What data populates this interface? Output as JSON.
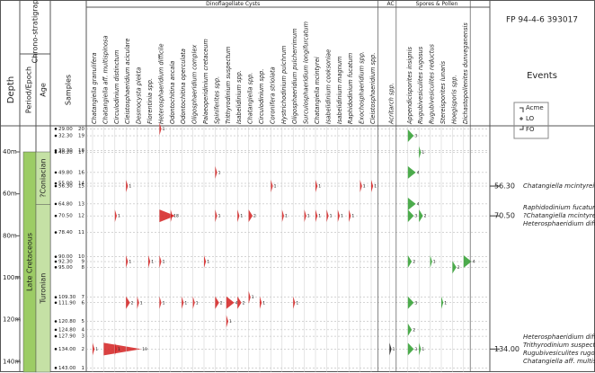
{
  "header": {
    "depth": "Depth",
    "chronostratigraphy": "Chrono-stratigraphy",
    "period_epoch": "Period/Epoch",
    "age": "Age",
    "samples": "Samples",
    "well": "FP 94-4-6 393017",
    "events": "Events"
  },
  "legend": [
    "Acme",
    "LO",
    "FO"
  ],
  "depth_axis": {
    "lim": [
      28,
      145
    ],
    "ticks": [
      {
        "value": 40,
        "label": "40m"
      },
      {
        "value": 60,
        "label": "60m"
      },
      {
        "value": 80,
        "label": "80m"
      },
      {
        "value": 100,
        "label": "100m"
      },
      {
        "value": 120,
        "label": "120m"
      },
      {
        "value": 140,
        "label": "140m"
      }
    ]
  },
  "chronostratigraphy": {
    "period": {
      "name": "Late Cretaceous",
      "top": 40,
      "base": 145
    },
    "ages": [
      {
        "name": "?Coniacian",
        "top": 40,
        "base": 65
      },
      {
        "name": "Turonian",
        "top": 65,
        "base": 145
      }
    ]
  },
  "samples": [
    {
      "depth": {
        "value": 29,
        "label": "29.00"
      },
      "number": 20
    },
    {
      "depth": {
        "value": 32.3,
        "label": "32.30"
      },
      "number": 19
    },
    {
      "depth": {
        "value": 39.3,
        "label": "39.30"
      },
      "number": 18
    },
    {
      "depth": {
        "value": 40.2,
        "label": "40.20"
      },
      "number": 17
    },
    {
      "depth": {
        "value": 49.8,
        "label": "49.80"
      },
      "number": 16
    },
    {
      "depth": {
        "value": 55,
        "label": "55.00"
      },
      "number": 14
    },
    {
      "depth": {
        "value": 56.3,
        "label": "56.30"
      },
      "number": 15
    },
    {
      "depth": {
        "value": 64.8,
        "label": "64.80"
      },
      "number": 13
    },
    {
      "depth": {
        "value": 70.5,
        "label": "70.50"
      },
      "number": 12
    },
    {
      "depth": {
        "value": 78.4,
        "label": "78.40"
      },
      "number": 11
    },
    {
      "depth": {
        "value": 90,
        "label": "90.00"
      },
      "number": 10
    },
    {
      "depth": {
        "value": 92.3,
        "label": "92.30"
      },
      "number": 9
    },
    {
      "depth": {
        "value": 95,
        "label": "95.00"
      },
      "number": 8
    },
    {
      "depth": {
        "value": 109.3,
        "label": "109.30"
      },
      "number": 7
    },
    {
      "depth": {
        "value": 111.9,
        "label": "111.90"
      },
      "number": 6
    },
    {
      "depth": {
        "value": 120.8,
        "label": "120.80"
      },
      "number": 5
    },
    {
      "depth": {
        "value": 124.8,
        "label": "124.80"
      },
      "number": 4
    },
    {
      "depth": {
        "value": 127.9,
        "label": "127.90"
      },
      "number": 3
    },
    {
      "depth": {
        "value": 134,
        "label": "134.00"
      },
      "number": 2
    },
    {
      "depth": {
        "value": 143,
        "label": "143.00"
      },
      "number": 1
    }
  ],
  "groups": [
    {
      "name": "Dinoflagellate Cysts",
      "color": "#d42020",
      "taxa": [
        {
          "name": "Chatangiella granulifera",
          "occurrences": [
            [
              134,
              1
            ]
          ]
        },
        {
          "name": "Chatangiella aff. multispinosa",
          "occurrences": [
            [
              134,
              19
            ]
          ]
        },
        {
          "name": "Circulodinium distinctum",
          "occurrences": [
            [
              70.5,
              1
            ],
            [
              134,
              1
            ]
          ]
        },
        {
          "name": "Cleistosphaeridium aciculare",
          "occurrences": [
            [
              56.3,
              1
            ],
            [
              92.3,
              1
            ],
            [
              111.9,
              2
            ]
          ]
        },
        {
          "name": "Desmocysta plekta",
          "occurrences": [
            [
              111.9,
              1
            ]
          ]
        },
        {
          "name": "Florentinia spp.",
          "occurrences": [
            [
              92.3,
              1
            ]
          ]
        },
        {
          "name": "Heterosphaeridium difficile",
          "occurrences": [
            [
              29,
              1
            ],
            [
              70.5,
              8
            ],
            [
              92.3,
              1
            ],
            [
              111.9,
              1
            ]
          ]
        },
        {
          "name": "Odontochitina ancala",
          "occurrences": [
            [
              70.5,
              1
            ]
          ]
        },
        {
          "name": "Odontochitina operculata",
          "occurrences": [
            [
              111.9,
              1
            ]
          ]
        },
        {
          "name": "Oligosphaeridium complex",
          "occurrences": [
            [
              111.9,
              1
            ]
          ]
        },
        {
          "name": "Palaeoperidinium cretaceum",
          "occurrences": [
            [
              92.3,
              1
            ]
          ]
        },
        {
          "name": "Spiniferites spp.",
          "occurrences": [
            [
              49.8,
              1
            ],
            [
              70.5,
              1
            ],
            [
              111.9,
              2
            ]
          ]
        },
        {
          "name": "Trithyrodinium suspectum",
          "occurrences": [
            [
              111.9,
              4
            ],
            [
              120.8,
              1
            ]
          ]
        },
        {
          "name": "Isabelidinium spp.",
          "occurrences": [
            [
              70.5,
              1
            ],
            [
              111.9,
              2
            ]
          ]
        },
        {
          "name": "Chatangiella spp.",
          "occurrences": [
            [
              70.5,
              2
            ],
            [
              109.3,
              1
            ]
          ]
        },
        {
          "name": "Circulodinium spp.",
          "occurrences": [
            [
              111.9,
              1
            ]
          ]
        },
        {
          "name": "Coronifera striolata",
          "occurrences": [
            [
              56.3,
              1
            ]
          ]
        },
        {
          "name": "Hystrichodinium pulchrum",
          "occurrences": [
            [
              70.5,
              1
            ]
          ]
        },
        {
          "name": "Oligosphaeridium pulcherrimum",
          "occurrences": [
            [
              111.9,
              1
            ]
          ]
        },
        {
          "name": "Surculosphaeridium longifurcatum",
          "occurrences": [
            [
              70.5,
              1
            ]
          ]
        },
        {
          "name": "Chatangiella mcintyrei",
          "occurrences": [
            [
              56.3,
              1
            ],
            [
              70.5,
              1
            ]
          ]
        },
        {
          "name": "Isabelidinium cooksoniae",
          "occurrences": [
            [
              70.5,
              1
            ]
          ]
        },
        {
          "name": "Isabelidinium magnum",
          "occurrences": [
            [
              70.5,
              1
            ]
          ]
        },
        {
          "name": "Raphidodinium fucatum",
          "occurrences": [
            [
              70.5,
              1
            ]
          ]
        },
        {
          "name": "Exochosphaeridium spp.",
          "occurrences": [
            [
              56.3,
              1
            ]
          ]
        },
        {
          "name": "Cleistosphaeridium spp.",
          "occurrences": [
            [
              56.3,
              1
            ]
          ]
        }
      ]
    },
    {
      "name": "AC",
      "color": "#111111",
      "taxa": [
        {
          "name": "Acritarch spp.",
          "occurrences": [
            [
              134,
              1
            ]
          ]
        }
      ]
    },
    {
      "name": "Spores & Pollen",
      "color": "#2e9e2e",
      "taxa": [
        {
          "name": "Appendicisporites insignis",
          "occurrences": [
            [
              32.3,
              3
            ],
            [
              49.8,
              4
            ],
            [
              64.8,
              4
            ],
            [
              70.5,
              3
            ],
            [
              92.3,
              2
            ],
            [
              111.9,
              3
            ],
            [
              124.8,
              2
            ],
            [
              134,
              3
            ]
          ]
        },
        {
          "name": "Rugubivesiculites rugosus",
          "occurrences": [
            [
              40.2,
              1
            ],
            [
              70.5,
              2
            ],
            [
              134,
              1
            ]
          ]
        },
        {
          "name": "Rugubivesiculites reductus",
          "occurrences": [
            [
              92.3,
              1
            ]
          ]
        },
        {
          "name": "Stereisporites lunaris",
          "occurrences": [
            [
              111.9,
              1
            ]
          ]
        },
        {
          "name": "Hoegisporis spp.",
          "occurrences": [
            [
              95,
              2
            ]
          ]
        },
        {
          "name": "Dichastopollenites dunveganensis",
          "occurrences": [
            [
              92.3,
              4
            ]
          ]
        }
      ]
    }
  ],
  "events": [
    {
      "depth": {
        "value": 56.3,
        "label": "56.30"
      },
      "lines": [
        "Chatangiella mcintyrei"
      ]
    },
    {
      "depth": {
        "value": 70.5,
        "label": "70.50"
      },
      "lines": [
        "Raphidodinium fucatum,",
        "?Chatangiella mcintyrei",
        "Heterosphaeridium difficile acme"
      ]
    },
    {
      "depth": {
        "value": 134,
        "label": "134.00"
      },
      "lines": [
        "Heterosphaeridium difficile,",
        "Trithyrodinium suspectum,",
        "Rugubivesiculites rugosus",
        "Chatangiella  aff. multispinosa"
      ]
    }
  ]
}
